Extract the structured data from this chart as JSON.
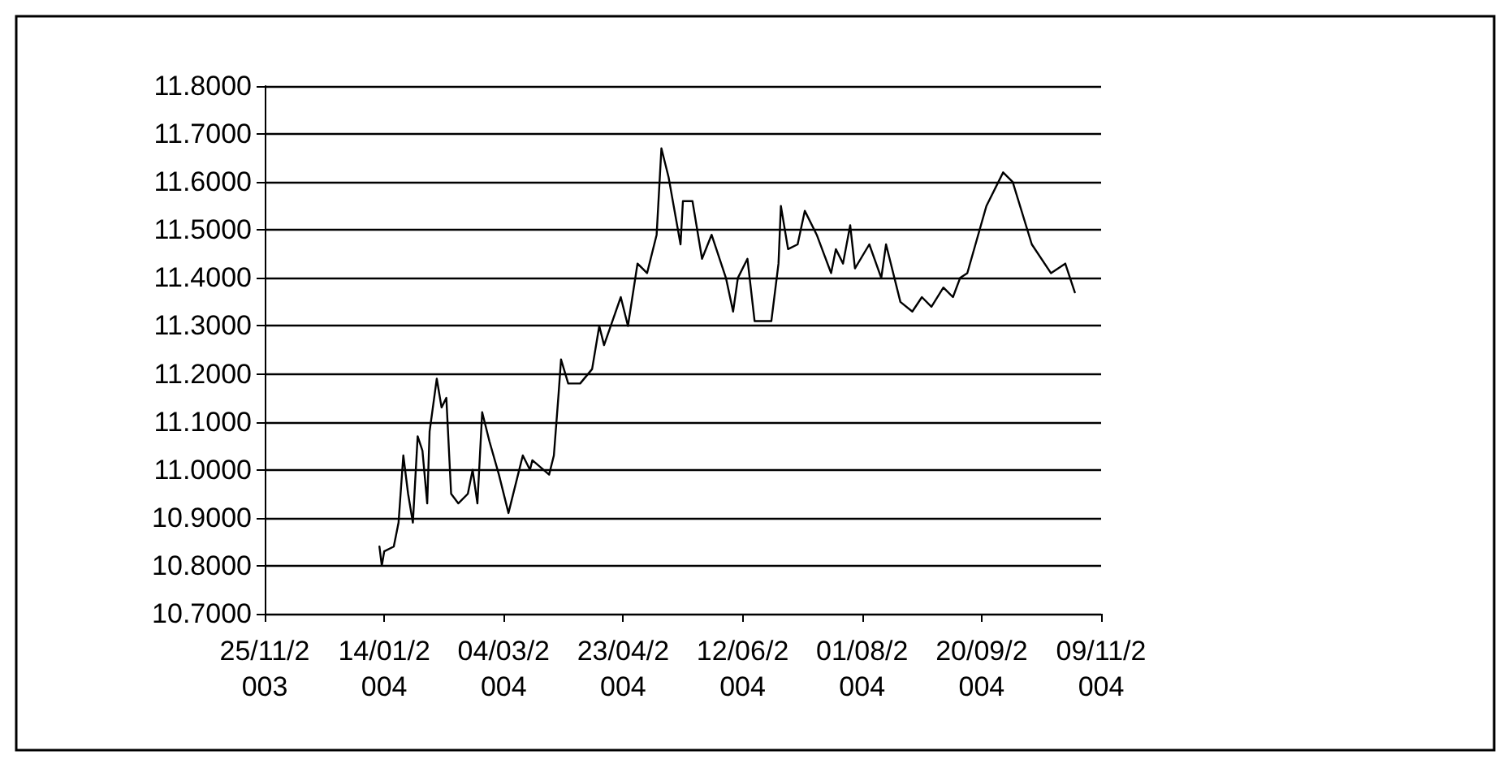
{
  "chart_data": {
    "type": "line",
    "x": [
      "2004-01-12",
      "2004-01-13",
      "2004-01-14",
      "2004-01-18",
      "2004-01-20",
      "2004-01-22",
      "2004-01-24",
      "2004-01-26",
      "2004-01-28",
      "2004-01-30",
      "2004-02-01",
      "2004-02-02",
      "2004-02-05",
      "2004-02-07",
      "2004-02-09",
      "2004-02-11",
      "2004-02-14",
      "2004-02-18",
      "2004-02-20",
      "2004-02-22",
      "2004-02-24",
      "2004-02-27",
      "2004-03-02",
      "2004-03-06",
      "2004-03-10",
      "2004-03-12",
      "2004-03-15",
      "2004-03-16",
      "2004-03-23",
      "2004-03-25",
      "2004-03-27",
      "2004-03-28",
      "2004-03-31",
      "2004-04-05",
      "2004-04-10",
      "2004-04-13",
      "2004-04-15",
      "2004-04-22",
      "2004-04-25",
      "2004-04-29",
      "2004-05-03",
      "2004-05-07",
      "2004-05-09",
      "2004-05-12",
      "2004-05-17",
      "2004-05-18",
      "2004-05-22",
      "2004-05-26",
      "2004-05-30",
      "2004-06-05",
      "2004-06-08",
      "2004-06-10",
      "2004-06-14",
      "2004-06-17",
      "2004-06-24",
      "2004-06-27",
      "2004-06-28",
      "2004-07-01",
      "2004-07-05",
      "2004-07-08",
      "2004-07-13",
      "2004-07-19",
      "2004-07-21",
      "2004-07-24",
      "2004-07-27",
      "2004-07-29",
      "2004-08-04",
      "2004-08-09",
      "2004-08-11",
      "2004-08-17",
      "2004-08-22",
      "2004-08-26",
      "2004-08-30",
      "2004-09-04",
      "2004-09-08",
      "2004-09-11",
      "2004-09-14",
      "2004-09-22",
      "2004-09-29",
      "2004-10-03",
      "2004-10-11",
      "2004-10-19",
      "2004-10-25",
      "2004-10-29"
    ],
    "series": [
      {
        "color": "#000000",
        "values": [
          10.84,
          10.8,
          10.83,
          10.84,
          10.89,
          11.03,
          10.95,
          10.89,
          11.07,
          11.04,
          10.93,
          11.08,
          11.19,
          11.13,
          11.15,
          10.95,
          10.93,
          10.95,
          11.0,
          10.93,
          11.12,
          11.06,
          10.99,
          10.91,
          10.99,
          11.03,
          11.0,
          11.02,
          10.99,
          11.03,
          11.16,
          11.23,
          11.18,
          11.18,
          11.21,
          11.3,
          11.26,
          11.36,
          11.3,
          11.43,
          11.41,
          11.49,
          11.67,
          11.61,
          11.47,
          11.56,
          11.56,
          11.44,
          11.49,
          11.4,
          11.33,
          11.4,
          11.44,
          11.31,
          11.31,
          11.43,
          11.55,
          11.46,
          11.47,
          11.54,
          11.49,
          11.41,
          11.46,
          11.43,
          11.51,
          11.42,
          11.47,
          11.4,
          11.47,
          11.35,
          11.33,
          11.36,
          11.34,
          11.38,
          11.36,
          11.4,
          11.41,
          11.55,
          11.62,
          11.6,
          11.47,
          11.41,
          11.43,
          11.37
        ]
      }
    ],
    "xlim": [
      "2003-11-25",
      "2004-11-09"
    ],
    "xticks": [
      {
        "value": "2003-11-25",
        "label": "25/11/2003"
      },
      {
        "value": "2004-01-14",
        "label": "14/01/2004"
      },
      {
        "value": "2004-03-04",
        "label": "04/03/2004"
      },
      {
        "value": "2004-04-23",
        "label": "23/04/2004"
      },
      {
        "value": "2004-06-12",
        "label": "12/06/2004"
      },
      {
        "value": "2004-08-01",
        "label": "01/08/2004"
      },
      {
        "value": "2004-09-20",
        "label": "20/09/2004"
      },
      {
        "value": "2004-11-09",
        "label": "09/11/2004"
      }
    ],
    "ylim": [
      10.7,
      11.8
    ],
    "yticks": [
      {
        "value": 10.7,
        "label": "10.7000"
      },
      {
        "value": 10.8,
        "label": "10.8000"
      },
      {
        "value": 10.9,
        "label": "10.9000"
      },
      {
        "value": 11.0,
        "label": "11.0000"
      },
      {
        "value": 11.1,
        "label": "11.1000"
      },
      {
        "value": 11.2,
        "label": "11.2000"
      },
      {
        "value": 11.3,
        "label": "11.3000"
      },
      {
        "value": 11.4,
        "label": "11.4000"
      },
      {
        "value": 11.5,
        "label": "11.5000"
      },
      {
        "value": 11.6,
        "label": "11.6000"
      },
      {
        "value": 11.7,
        "label": "11.7000"
      },
      {
        "value": 11.8,
        "label": "11.8000"
      }
    ],
    "grid": "y",
    "marker": "none",
    "line_style": "solid"
  }
}
